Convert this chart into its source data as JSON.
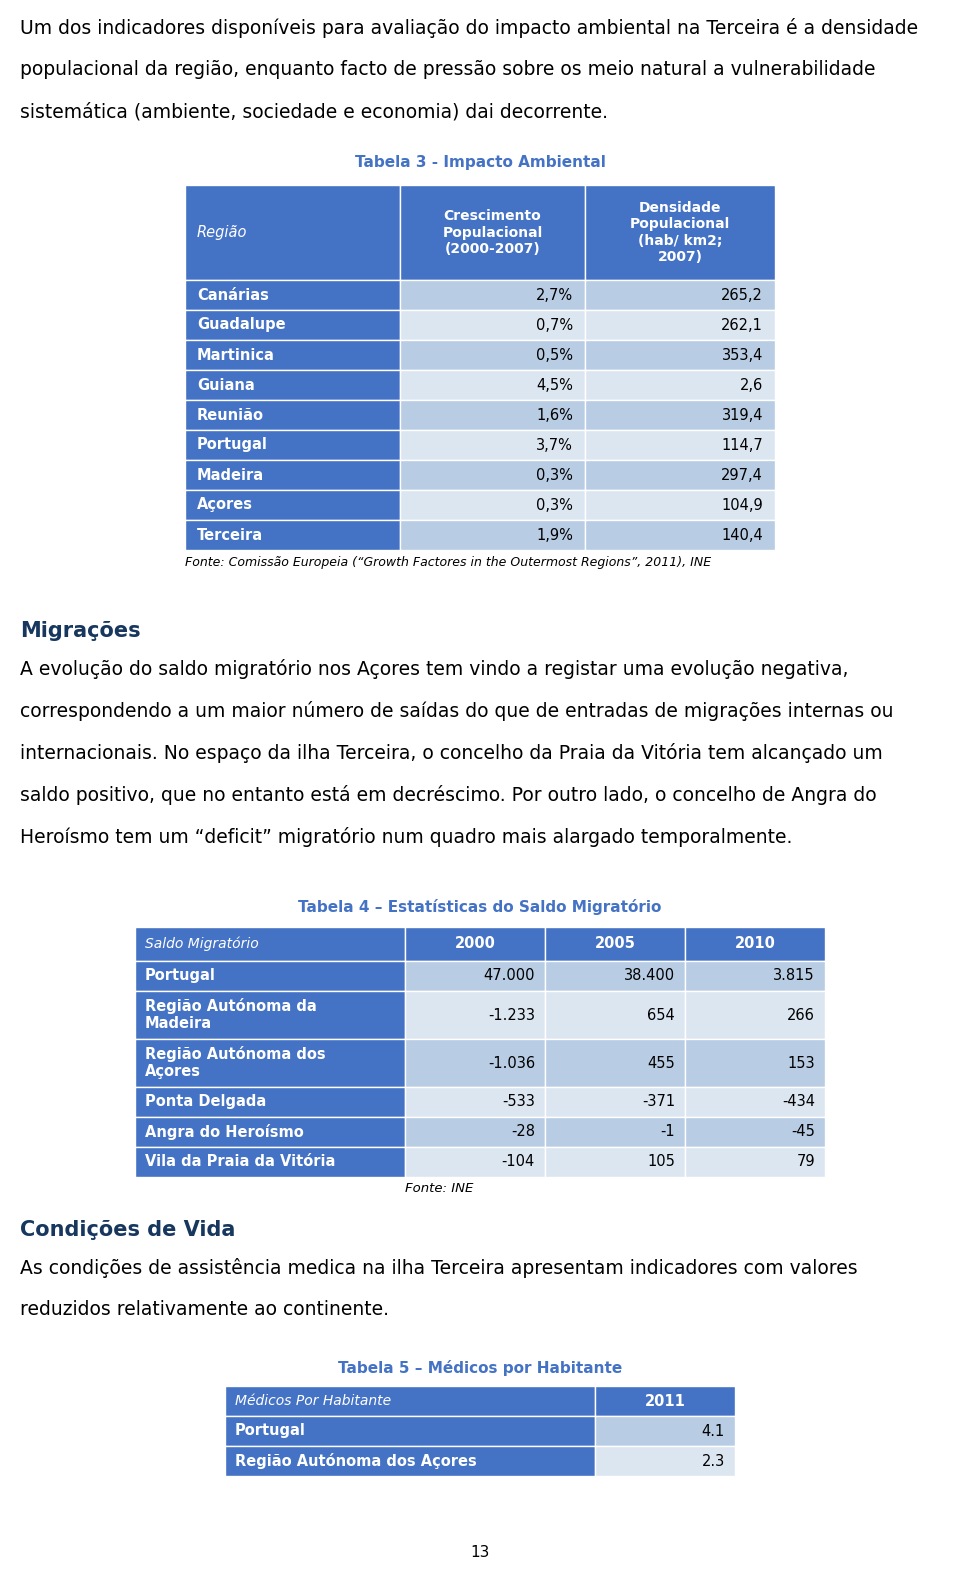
{
  "intro_text": "Um dos indicadores disponíveis para avaliação do impacto ambiental na Terceira é a densidade populacional da região, enquanto facto de pressão sobre os meio natural a vulnerabilidade sistemática (ambiente, sociedade e economia) dai decorrente.",
  "table3_title": "Tabela 3 - Impacto Ambiental",
  "table3_header": [
    "Região",
    "Crescimento\nPopulacional\n(2000-2007)",
    "Densidade\nPopulacional\n(hab/ km2;\n2007)"
  ],
  "table3_rows": [
    [
      "Canárias",
      "2,7%",
      "265,2"
    ],
    [
      "Guadalupe",
      "0,7%",
      "262,1"
    ],
    [
      "Martinica",
      "0,5%",
      "353,4"
    ],
    [
      "Guiana",
      "4,5%",
      "2,6"
    ],
    [
      "Reunião",
      "1,6%",
      "319,4"
    ],
    [
      "Portugal",
      "3,7%",
      "114,7"
    ],
    [
      "Madeira",
      "0,3%",
      "297,4"
    ],
    [
      "Açores",
      "0,3%",
      "104,9"
    ],
    [
      "Terceira",
      "1,9%",
      "140,4"
    ]
  ],
  "table3_fonte": "Fonte: Comissão Europeia (“Growth Factores in the Outermost Regions”, 2011), INE",
  "migracoes_title": "Migrações",
  "migracoes_text": "A evolução do saldo migratório nos Açores tem vindo a registar uma evolução negativa,\ncorrespondendo a um maior número de saídas do que de entradas de migrações internas ou\ninternacionais. No espaço da ilha Terceira, o concelho da Praia da Vitória tem alcançado um\nsaldo positivo, que no entanto está em decréscimo. Por outro lado, o concelho de Angra do\nHeroísmo tem um “deficit” migratório num quadro mais alargado temporalmente.",
  "table4_title": "Tabela 4 – Estatísticas do Saldo Migratório",
  "table4_header": [
    "Saldo Migratório",
    "2000",
    "2005",
    "2010"
  ],
  "table4_rows": [
    [
      "Portugal",
      "47.000",
      "38.400",
      "3.815"
    ],
    [
      "Região Autónoma da\nMadeira",
      "-1.233",
      "654",
      "266"
    ],
    [
      "Região Autónoma dos\nAçores",
      "-1.036",
      "455",
      "153"
    ],
    [
      "Ponta Delgada",
      "-533",
      "-371",
      "-434"
    ],
    [
      "Angra do Heroísmo",
      "-28",
      "-1",
      "-45"
    ],
    [
      "Vila da Praia da Vitória",
      "-104",
      "105",
      "79"
    ]
  ],
  "table4_fonte": "Fonte: INE",
  "condicoes_title": "Condições de Vida",
  "condicoes_text": "As condições de assistência medica na ilha Terceira apresentam indicadores com valores\nreduzidos relativamente ao continente.",
  "table5_title": "Tabela 5 – Médicos por Habitante",
  "table5_header": [
    "Médicos Por Habitante",
    "2011"
  ],
  "table5_rows": [
    [
      "Portugal",
      "4.1"
    ],
    [
      "Região Autónoma dos Açores",
      "2.3"
    ]
  ],
  "page_number": "13",
  "header_bg": "#4472C4",
  "header_text": "#FFFFFF",
  "row_odd_bg": "#B8CCE4",
  "row_even_bg": "#DCE6F1",
  "row_label_bg": "#4472C4",
  "row_label_text": "#FFFFFF",
  "table_title_color": "#4472C4",
  "section_title_color": "#17375E",
  "body_text_color": "#000000",
  "bg_color": "#FFFFFF"
}
